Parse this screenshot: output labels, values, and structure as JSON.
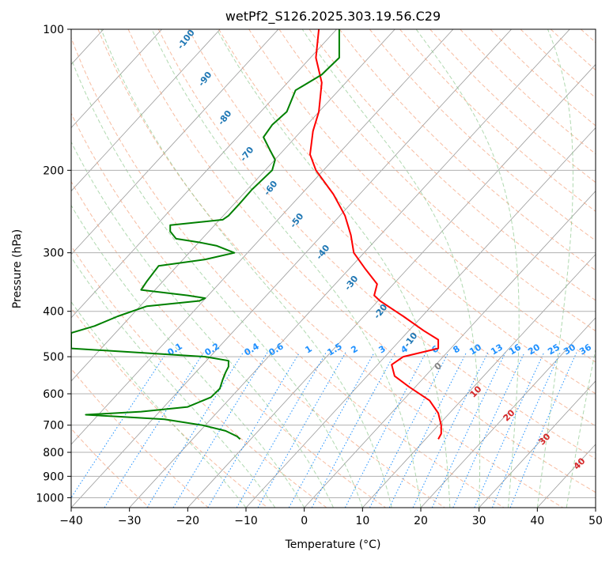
{
  "chart_data": {
    "type": "line",
    "subtype": "skew-t log-p",
    "title": "wetPf2_S126.2025.303.19.56.C29",
    "xlabel": "Temperature (°C)",
    "ylabel": "Pressure (hPa)",
    "xlim": [
      -40,
      50
    ],
    "ylim": [
      1050,
      100
    ],
    "y_scale": "log",
    "x_ticks": [
      -40,
      -30,
      -20,
      -10,
      0,
      10,
      20,
      30,
      40,
      50
    ],
    "y_ticks": [
      100,
      200,
      300,
      400,
      500,
      600,
      700,
      800,
      900,
      1000
    ],
    "grid": true,
    "series": [
      {
        "key": "temperature",
        "color": "#ff0000",
        "points": [
          [
            100,
            2.5
          ],
          [
            115,
            2.0
          ],
          [
            130,
            3.0
          ],
          [
            150,
            2.5
          ],
          [
            165,
            1.5
          ],
          [
            185,
            1.0
          ],
          [
            200,
            2.0
          ],
          [
            225,
            5.0
          ],
          [
            250,
            7.0
          ],
          [
            275,
            8.0
          ],
          [
            300,
            8.5
          ],
          [
            325,
            10.5
          ],
          [
            350,
            12.5
          ],
          [
            370,
            12.0
          ],
          [
            380,
            13.0
          ],
          [
            410,
            17.0
          ],
          [
            440,
            20.5
          ],
          [
            460,
            23.0
          ],
          [
            480,
            23.0
          ],
          [
            490,
            20.0
          ],
          [
            500,
            17.0
          ],
          [
            520,
            15.0
          ],
          [
            550,
            15.5
          ],
          [
            580,
            18.0
          ],
          [
            620,
            21.5
          ],
          [
            660,
            23.0
          ],
          [
            700,
            23.5
          ],
          [
            730,
            23.5
          ],
          [
            750,
            23.0
          ]
        ]
      },
      {
        "key": "dewpoint",
        "color": "#008000",
        "points": [
          [
            100,
            6.0
          ],
          [
            115,
            6.0
          ],
          [
            125,
            3.0
          ],
          [
            135,
            -1.5
          ],
          [
            150,
            -3.0
          ],
          [
            160,
            -5.5
          ],
          [
            170,
            -7.0
          ],
          [
            180,
            -6.0
          ],
          [
            190,
            -5.0
          ],
          [
            200,
            -5.5
          ],
          [
            220,
            -9.0
          ],
          [
            235,
            -11.0
          ],
          [
            250,
            -13.0
          ],
          [
            255,
            -14.0
          ],
          [
            262,
            -23.0
          ],
          [
            270,
            -23.0
          ],
          [
            280,
            -22.0
          ],
          [
            285,
            -18.0
          ],
          [
            290,
            -15.0
          ],
          [
            300,
            -12.0
          ],
          [
            310,
            -17.0
          ],
          [
            320,
            -25.0
          ],
          [
            345,
            -27.0
          ],
          [
            360,
            -28.0
          ],
          [
            365,
            -24.0
          ],
          [
            370,
            -20.0
          ],
          [
            375,
            -17.0
          ],
          [
            380,
            -18.0
          ],
          [
            390,
            -27.0
          ],
          [
            410,
            -32.0
          ],
          [
            430,
            -36.0
          ],
          [
            445,
            -40.0
          ],
          [
            480,
            -40.0
          ],
          [
            492,
            -26.0
          ],
          [
            500,
            -17.0
          ],
          [
            510,
            -13.0
          ],
          [
            525,
            -13.0
          ],
          [
            540,
            -13.5
          ],
          [
            560,
            -14.0
          ],
          [
            585,
            -14.5
          ],
          [
            610,
            -16.0
          ],
          [
            640,
            -20.0
          ],
          [
            655,
            -28.0
          ],
          [
            665,
            -37.5
          ],
          [
            670,
            -33.0
          ],
          [
            680,
            -24.0
          ],
          [
            700,
            -17.5
          ],
          [
            720,
            -13.5
          ],
          [
            740,
            -11.5
          ],
          [
            750,
            -11.0
          ]
        ]
      }
    ],
    "parcel_marker": {
      "label": "0",
      "pressure": 530,
      "temperature": 23.0,
      "color": "#808080"
    },
    "label_colors": {
      "dry_adiabat": "#1f77b4",
      "mixing_ratio": "#1e90ff",
      "moist_adiabat": "#d62728"
    },
    "dry_adiabat_labels": [
      "-100",
      "-90",
      "-80",
      "-70",
      "-60",
      "-50",
      "-40",
      "-30",
      "-20",
      "-10"
    ],
    "mixing_ratio_labels": [
      "0.1",
      "0.2",
      "0.4",
      "0.6",
      "1",
      "1.5",
      "2",
      "3",
      "4",
      "6",
      "8",
      "10",
      "13",
      "16",
      "20",
      "25",
      "30",
      "36"
    ],
    "moist_adiabat_labels": [
      "10",
      "20",
      "30",
      "40"
    ]
  }
}
